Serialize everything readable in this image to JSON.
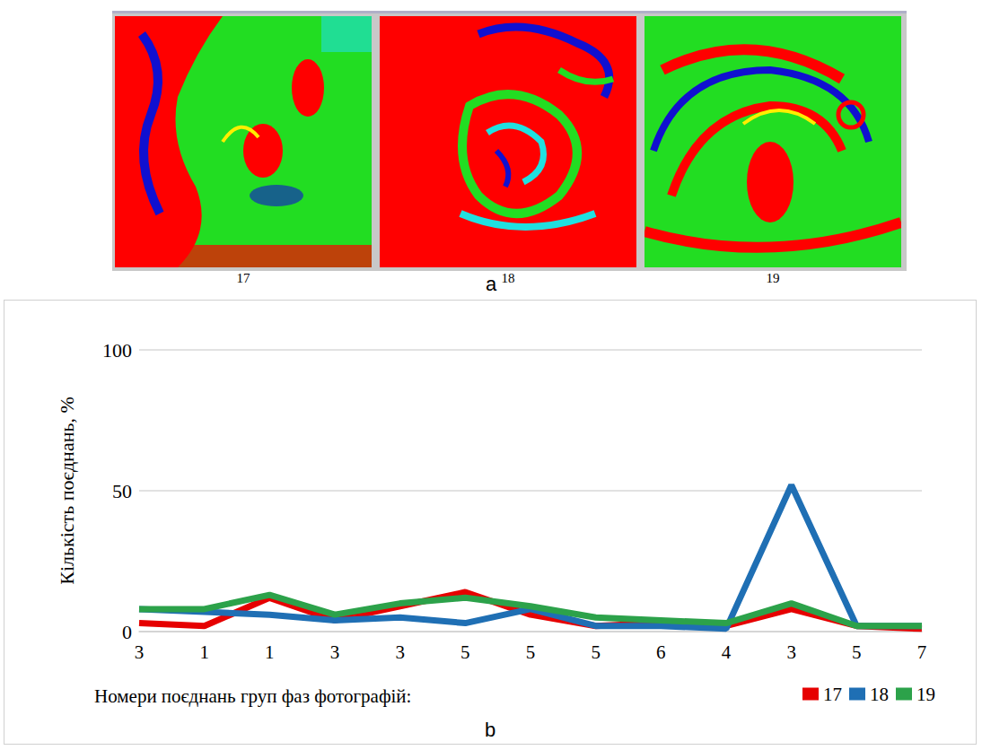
{
  "image_panel": {
    "letter": "a",
    "labels": [
      "17",
      "18",
      "19"
    ]
  },
  "chart_panel": {
    "letter": "b"
  },
  "chart_data": {
    "type": "line",
    "ylabel": "Кількість поєднань, %",
    "xlabel": "Номери поєднань груп фаз фотографій:",
    "categories": [
      "3",
      "1",
      "1",
      "3",
      "3",
      "5",
      "5",
      "5",
      "6",
      "4",
      "3",
      "5",
      "7"
    ],
    "series": [
      {
        "name": "17",
        "color": "#e60000",
        "values": [
          3,
          2,
          12,
          4,
          9,
          14,
          6,
          2,
          3,
          2,
          8,
          2,
          1
        ]
      },
      {
        "name": "18",
        "color": "#1f6fb4",
        "values": [
          8,
          7,
          6,
          4,
          5,
          3,
          8,
          2,
          2,
          1,
          52,
          2,
          2
        ]
      },
      {
        "name": "19",
        "color": "#2ca24a",
        "values": [
          8,
          8,
          13,
          6,
          10,
          12,
          9,
          5,
          4,
          3,
          10,
          2,
          2
        ]
      }
    ],
    "ylim": [
      0,
      100
    ],
    "yticks": [
      0,
      50,
      100
    ],
    "grid": true,
    "legend": "bottom-right"
  }
}
